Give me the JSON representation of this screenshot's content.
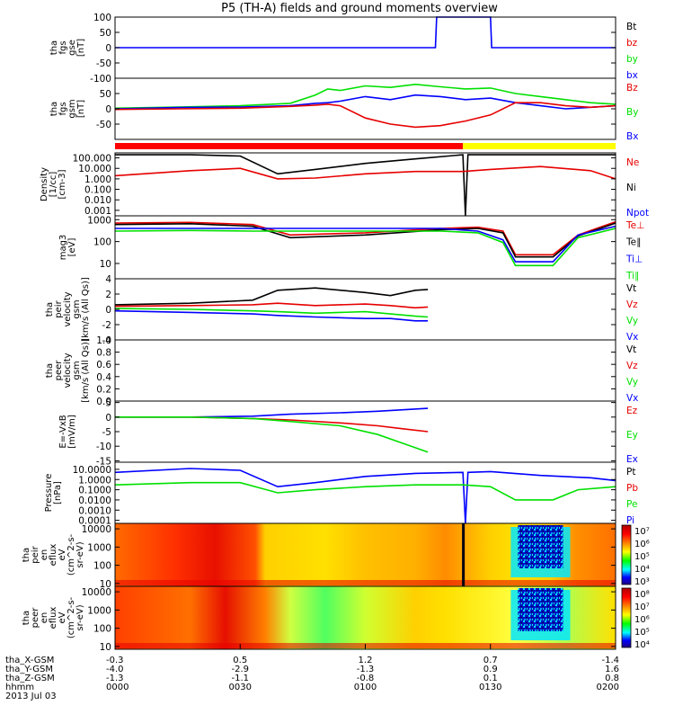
{
  "title": "P5 (TH-A) fields and ground moments overview",
  "colors": {
    "black": "#000000",
    "red": "#e60000",
    "green": "#00e000",
    "blue": "#0000ff",
    "yellow": "#ffff00",
    "bar_red": "#ff0000"
  },
  "chart_data": [
    {
      "type": "line",
      "id": "fgs_gse",
      "ylabel": [
        "tha",
        "fgs",
        "gse",
        "[nT]"
      ],
      "ylim": [
        -100,
        100
      ],
      "ticks": [
        "100",
        "50",
        "0",
        "-50",
        "-100"
      ],
      "tick_values": [
        100,
        50,
        0,
        -50,
        -100
      ],
      "legend": [
        {
          "label": "Bt",
          "color": "#000000"
        },
        {
          "label": "bz",
          "color": "#e60000"
        },
        {
          "label": "by",
          "color": "#00e000"
        },
        {
          "label": "bx",
          "color": "#0000ff"
        }
      ],
      "series": [
        {
          "name": "bx",
          "color": "#0000ff",
          "x": [
            0,
            1.28,
            1.285,
            1.5,
            1.505,
            2.0
          ],
          "y": [
            0,
            0,
            100,
            100,
            0,
            0
          ]
        }
      ]
    },
    {
      "type": "line",
      "id": "fgs_gsm",
      "ylabel": [
        "tha",
        "fgs",
        "gsm",
        "[nT]"
      ],
      "ylim": [
        -100,
        100
      ],
      "ticks": [
        "50",
        "0",
        "-50"
      ],
      "tick_values": [
        50,
        0,
        -50
      ],
      "legend": [
        {
          "label": "Bz",
          "color": "#e60000"
        },
        {
          "label": "By",
          "color": "#00e000"
        },
        {
          "label": "Bx",
          "color": "#0000ff"
        }
      ],
      "series": [
        {
          "name": "By",
          "color": "#00e000",
          "x": [
            0,
            0.25,
            0.5,
            0.7,
            0.8,
            0.85,
            0.9,
            1.0,
            1.1,
            1.2,
            1.3,
            1.4,
            1.5,
            1.6,
            1.7,
            1.8,
            1.9,
            2.0
          ],
          "y": [
            2,
            6,
            10,
            18,
            45,
            65,
            60,
            75,
            70,
            80,
            72,
            65,
            68,
            50,
            40,
            30,
            20,
            15
          ]
        },
        {
          "name": "Bx",
          "color": "#0000ff",
          "x": [
            0,
            0.25,
            0.5,
            0.7,
            0.8,
            0.85,
            0.9,
            1.0,
            1.1,
            1.2,
            1.3,
            1.4,
            1.5,
            1.6,
            1.7,
            1.8,
            1.9,
            2.0
          ],
          "y": [
            0,
            4,
            6,
            10,
            18,
            20,
            25,
            40,
            30,
            45,
            40,
            30,
            35,
            20,
            10,
            0,
            5,
            10
          ]
        },
        {
          "name": "Bz",
          "color": "#e60000",
          "x": [
            0,
            0.25,
            0.5,
            0.7,
            0.8,
            0.85,
            0.9,
            1.0,
            1.1,
            1.2,
            1.3,
            1.4,
            1.5,
            1.6,
            1.7,
            1.8,
            1.9,
            2.0
          ],
          "y": [
            -2,
            0,
            2,
            8,
            12,
            15,
            10,
            -30,
            -50,
            -60,
            -55,
            -40,
            -20,
            20,
            20,
            10,
            5,
            10
          ]
        }
      ]
    },
    {
      "type": "line",
      "id": "density",
      "ylabel": [
        "Density",
        "[1/cc]",
        "[cm-3]"
      ],
      "scale": "log",
      "ylim": [
        0.0003,
        300
      ],
      "ticks": [
        "100.000",
        "10.000",
        "1.000",
        "0.100",
        "0.010",
        "0.001"
      ],
      "tick_values": [
        100,
        10,
        1,
        0.1,
        0.01,
        0.001
      ],
      "legend": [
        {
          "label": "Ne",
          "color": "#e60000"
        },
        {
          "label": "Ni",
          "color": "#000000"
        },
        {
          "label": "Npot",
          "color": "#0000ff"
        }
      ],
      "series": [
        {
          "name": "Ni",
          "color": "#000000",
          "x": [
            0,
            0.3,
            0.5,
            0.65,
            0.8,
            1.0,
            1.2,
            1.39,
            1.4,
            1.41,
            1.5,
            1.7,
            1.9,
            2.0
          ],
          "y": [
            200,
            200,
            150,
            3,
            8,
            30,
            80,
            200,
            0.0003,
            200,
            200,
            200,
            200,
            200
          ]
        },
        {
          "name": "Ne",
          "color": "#e60000",
          "x": [
            0,
            0.3,
            0.5,
            0.65,
            0.8,
            1.0,
            1.2,
            1.39,
            1.5,
            1.7,
            1.9,
            2.0
          ],
          "y": [
            2,
            6,
            10,
            1,
            1.2,
            3,
            5,
            5,
            8,
            15,
            6,
            1
          ]
        }
      ]
    },
    {
      "type": "line",
      "id": "temps",
      "ylabel": [
        "mag3",
        "[eV]"
      ],
      "scale": "log",
      "ylim": [
        2,
        1500
      ],
      "ticks": [
        "1000",
        "100",
        "10"
      ],
      "tick_values": [
        1000,
        100,
        10
      ],
      "legend": [
        {
          "label": "Te⊥",
          "color": "#e60000"
        },
        {
          "label": "Te∥",
          "color": "#000000"
        },
        {
          "label": "Ti⊥",
          "color": "#0000ff"
        },
        {
          "label": "Ti∥",
          "color": "#00e000"
        }
      ],
      "series": [
        {
          "name": "Te⊥",
          "color": "#e60000",
          "x": [
            0,
            0.3,
            0.55,
            0.7,
            1.0,
            1.3,
            1.45,
            1.55,
            1.6,
            1.75,
            1.85,
            2.0
          ],
          "y": [
            700,
            750,
            600,
            200,
            250,
            400,
            450,
            300,
            25,
            25,
            200,
            800
          ]
        },
        {
          "name": "Te∥",
          "color": "#000000",
          "x": [
            0,
            0.3,
            0.55,
            0.7,
            1.0,
            1.3,
            1.45,
            1.55,
            1.6,
            1.75,
            1.85,
            2.0
          ],
          "y": [
            600,
            650,
            500,
            150,
            200,
            350,
            400,
            250,
            20,
            20,
            180,
            700
          ]
        },
        {
          "name": "Ti⊥",
          "color": "#0000ff",
          "x": [
            0,
            0.3,
            0.55,
            0.7,
            1.0,
            1.3,
            1.45,
            1.55,
            1.6,
            1.75,
            1.85,
            2.0
          ],
          "y": [
            400,
            400,
            400,
            400,
            400,
            400,
            300,
            120,
            12,
            12,
            200,
            500
          ]
        },
        {
          "name": "Ti∥",
          "color": "#00e000",
          "x": [
            0,
            0.3,
            0.55,
            0.7,
            1.0,
            1.3,
            1.45,
            1.55,
            1.6,
            1.75,
            1.85,
            2.0
          ],
          "y": [
            300,
            320,
            300,
            300,
            300,
            300,
            250,
            90,
            8,
            8,
            150,
            400
          ]
        }
      ]
    },
    {
      "type": "line",
      "id": "peir_velocity",
      "ylabel": [
        "tha",
        "peir",
        "velocity",
        "gsm",
        "[km/s (All Qs)]"
      ],
      "ylim": [
        -4,
        4
      ],
      "ticks": [
        "4",
        "2",
        "0",
        "-2",
        "-4"
      ],
      "tick_values": [
        4,
        2,
        0,
        -2,
        -4
      ],
      "legend": [
        {
          "label": "Vt",
          "color": "#000000"
        },
        {
          "label": "Vz",
          "color": "#e60000"
        },
        {
          "label": "Vy",
          "color": "#00e000"
        },
        {
          "label": "Vx",
          "color": "#0000ff"
        }
      ],
      "series": [
        {
          "name": "Vt",
          "color": "#000000",
          "x": [
            0,
            0.3,
            0.55,
            0.65,
            0.8,
            1.0,
            1.1,
            1.2,
            1.25
          ],
          "y": [
            0.6,
            0.8,
            1.2,
            2.5,
            2.8,
            2.2,
            1.8,
            2.5,
            2.6
          ]
        },
        {
          "name": "Vz",
          "color": "#e60000",
          "x": [
            0,
            0.3,
            0.55,
            0.65,
            0.8,
            1.0,
            1.1,
            1.2,
            1.25
          ],
          "y": [
            0.4,
            0.5,
            0.6,
            0.8,
            0.5,
            0.7,
            0.5,
            0.2,
            0.3
          ]
        },
        {
          "name": "Vy",
          "color": "#00e000",
          "x": [
            0,
            0.3,
            0.55,
            0.65,
            0.8,
            1.0,
            1.1,
            1.2,
            1.25
          ],
          "y": [
            0.1,
            0.0,
            -0.2,
            -0.3,
            -0.5,
            -0.3,
            -0.6,
            -0.9,
            -1.0
          ]
        },
        {
          "name": "Vx",
          "color": "#0000ff",
          "x": [
            0,
            0.3,
            0.55,
            0.65,
            0.8,
            1.0,
            1.1,
            1.2,
            1.25
          ],
          "y": [
            -0.2,
            -0.4,
            -0.6,
            -0.8,
            -1.0,
            -1.2,
            -1.2,
            -1.5,
            -1.5
          ]
        }
      ]
    },
    {
      "type": "line",
      "id": "peer_velocity",
      "ylabel": [
        "tha",
        "peer",
        "velocity",
        "gsm",
        "[km/s (All Qs)]"
      ],
      "ylim": [
        0,
        1
      ],
      "ticks": [
        "1.0",
        "0.8",
        "0.6",
        "0.4",
        "0.2",
        "0.0"
      ],
      "tick_values": [
        1.0,
        0.8,
        0.6,
        0.4,
        0.2,
        0.0
      ],
      "legend": [
        {
          "label": "Vt",
          "color": "#000000"
        },
        {
          "label": "Vz",
          "color": "#e60000"
        },
        {
          "label": "Vy",
          "color": "#00e000"
        },
        {
          "label": "Vx",
          "color": "#0000ff"
        }
      ],
      "series": []
    },
    {
      "type": "line",
      "id": "efield",
      "ylabel": [
        "E=-VxB",
        "[mV/m]"
      ],
      "ylim": [
        -15.5,
        5.5
      ],
      "ticks": [
        "5",
        "0",
        "-5",
        "-10",
        "-15"
      ],
      "tick_values": [
        5,
        0,
        -5,
        -10,
        -15
      ],
      "legend": [
        {
          "label": "Ez",
          "color": "#e60000"
        },
        {
          "label": "Ey",
          "color": "#00e000"
        },
        {
          "label": "Ex",
          "color": "#0000ff"
        }
      ],
      "series": [
        {
          "name": "Ex",
          "color": "#0000ff",
          "x": [
            0,
            0.3,
            0.55,
            0.7,
            0.9,
            1.05,
            1.15,
            1.25
          ],
          "y": [
            0,
            0,
            0.3,
            1,
            1.5,
            2,
            2.5,
            3
          ]
        },
        {
          "name": "Ez",
          "color": "#e60000",
          "x": [
            0,
            0.3,
            0.55,
            0.7,
            0.9,
            1.05,
            1.15,
            1.25
          ],
          "y": [
            0,
            0,
            -0.5,
            -1,
            -2,
            -3,
            -4,
            -5
          ]
        },
        {
          "name": "Ey",
          "color": "#00e000",
          "x": [
            0,
            0.3,
            0.55,
            0.7,
            0.9,
            1.05,
            1.15,
            1.25
          ],
          "y": [
            0,
            0,
            -0.5,
            -1.5,
            -3,
            -6,
            -9,
            -12
          ]
        }
      ]
    },
    {
      "type": "line",
      "id": "pressure",
      "ylabel": [
        "Pressure",
        "[nPa]"
      ],
      "scale": "log",
      "ylim": [
        5e-05,
        50
      ],
      "ticks": [
        "10.0000",
        "1.0000",
        "0.1000",
        "0.0100",
        "0.0010",
        "0.0001"
      ],
      "tick_values": [
        10,
        1,
        0.1,
        0.01,
        0.001,
        0.0001
      ],
      "legend": [
        {
          "label": "Pt",
          "color": "#000000"
        },
        {
          "label": "Pb",
          "color": "#e60000"
        },
        {
          "label": "Pe",
          "color": "#00e000"
        },
        {
          "label": "Pi",
          "color": "#0000ff"
        }
      ],
      "series": [
        {
          "name": "Pi",
          "color": "#0000ff",
          "x": [
            0,
            0.3,
            0.5,
            0.65,
            0.8,
            1.0,
            1.2,
            1.39,
            1.4,
            1.41,
            1.5,
            1.7,
            1.9,
            2.0
          ],
          "y": [
            5,
            12,
            8,
            0.2,
            0.5,
            2,
            4,
            5,
            5e-05,
            5,
            6,
            2.5,
            1.5,
            0.8
          ]
        },
        {
          "name": "Pe",
          "color": "#00e000",
          "x": [
            0,
            0.3,
            0.5,
            0.65,
            0.8,
            1.0,
            1.2,
            1.39,
            1.5,
            1.6,
            1.75,
            1.85,
            2.0
          ],
          "y": [
            0.3,
            0.5,
            0.5,
            0.05,
            0.1,
            0.2,
            0.3,
            0.3,
            0.2,
            0.01,
            0.01,
            0.1,
            0.2
          ]
        }
      ]
    },
    {
      "type": "heatmap",
      "id": "peir_eflux",
      "ylabel": [
        "tha",
        "peir",
        "en",
        "eflux",
        "eV",
        "(cm^2-s-",
        "sr-eV)"
      ],
      "scale": "log",
      "ylim": [
        7,
        20000
      ],
      "ticks": [
        "10000",
        "1000",
        "100",
        "10"
      ],
      "tick_values": [
        10000,
        1000,
        100,
        10
      ],
      "colorbar": {
        "labels": [
          "10⁷",
          "10⁶",
          "10⁵",
          "10⁴",
          "10³"
        ]
      }
    },
    {
      "type": "heatmap",
      "id": "peer_eflux",
      "ylabel": [
        "tha",
        "peer",
        "en",
        "eflux",
        "eV",
        "(cm^2-s-",
        "sr-eV)"
      ],
      "scale": "log",
      "ylim": [
        7,
        20000
      ],
      "ticks": [
        "10000",
        "1000",
        "100",
        "10"
      ],
      "tick_values": [
        10000,
        1000,
        100,
        10
      ],
      "colorbar": {
        "labels": [
          "10⁸",
          "10⁷",
          "10⁶",
          "10⁵",
          "10⁴"
        ]
      }
    }
  ],
  "mode_bar": {
    "segments": [
      {
        "from": 0,
        "to": 1.39,
        "color": "#ff0000"
      },
      {
        "from": 1.39,
        "to": 2.0,
        "color": "#ffff00"
      }
    ]
  },
  "ephemeris": {
    "labels": [
      "tha_X-GSM",
      "tha_Y-GSM",
      "tha_Z-GSM",
      "hhmm",
      "2013 Jul 03"
    ],
    "columns": [
      [
        "-0.3",
        "-4.0",
        "-1.3",
        "0000"
      ],
      [
        "0.5",
        "-2.9",
        "-1.1",
        "0030"
      ],
      [
        "1.2",
        "-1.3",
        "-0.8",
        "0100"
      ],
      [
        "0.7",
        "0.9",
        "0.1",
        "0130"
      ],
      [
        "-1.4",
        "1.6",
        "0.8",
        "0200"
      ]
    ]
  }
}
